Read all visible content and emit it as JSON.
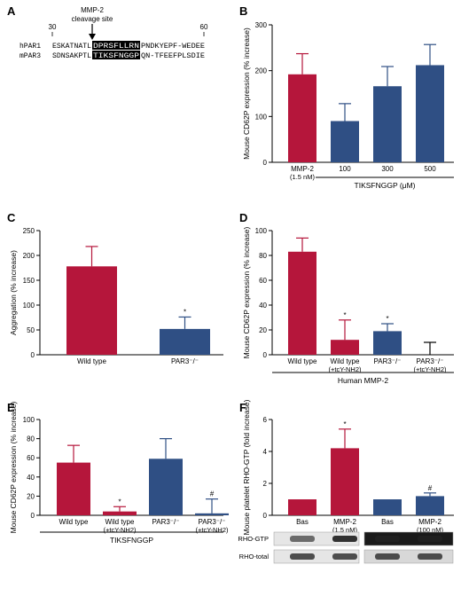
{
  "colors": {
    "red": "#b5163b",
    "blue": "#2f4f84",
    "black": "#000000"
  },
  "panels": {
    "A": {
      "letter": "A",
      "site_label_line1": "MMP-2",
      "site_label_line2": "cleavage site",
      "pos_start": "30",
      "pos_end": "60",
      "rows": [
        {
          "name": "hPAR1",
          "pre": "ESKATNATL",
          "hl": "DPRSFLLRN",
          "post": "PNDKYEPF-WEDEE"
        },
        {
          "name": "mPAR3",
          "pre": "SDNSAKPTL",
          "hl": "TIKSFNGGP",
          "post": "QN-TFEEFPLSDIE"
        }
      ]
    },
    "B": {
      "letter": "B",
      "ylabel": "Mouse CD62P expression (% increase)",
      "ylim": [
        0,
        300
      ],
      "yticks": [
        "0",
        "100",
        "200",
        "300"
      ],
      "bars": [
        {
          "label1": "MMP-2",
          "label2": "(1.5 nM)",
          "value": 192,
          "err": 45,
          "color": "red",
          "sig": ""
        },
        {
          "label1": "100",
          "label2": "",
          "value": 90,
          "err": 38,
          "color": "blue",
          "sig": ""
        },
        {
          "label1": "300",
          "label2": "",
          "value": 166,
          "err": 43,
          "color": "blue",
          "sig": ""
        },
        {
          "label1": "500",
          "label2": "",
          "value": 212,
          "err": 45,
          "color": "blue",
          "sig": ""
        }
      ],
      "group_label": "TIKSFNGGP (μM)"
    },
    "C": {
      "letter": "C",
      "ylabel": "Aggregation (% increase)",
      "ylim": [
        0,
        250
      ],
      "yticks": [
        "0",
        "50",
        "100",
        "150",
        "200",
        "250"
      ],
      "bars": [
        {
          "label1": "Wild type",
          "label2": "",
          "value": 178,
          "err": 40,
          "color": "red",
          "sig": ""
        },
        {
          "label1": "PAR3⁻/⁻",
          "label2": "",
          "value": 52,
          "err": 24,
          "color": "blue",
          "sig": "*"
        }
      ]
    },
    "D": {
      "letter": "D",
      "ylabel": "Mouse CD62P expression (% increase)",
      "ylim": [
        0,
        100
      ],
      "yticks": [
        "0",
        "20",
        "40",
        "60",
        "80",
        "100"
      ],
      "bars": [
        {
          "label1": "Wild type",
          "label2": "",
          "value": 83,
          "err": 11,
          "color": "red",
          "sig": ""
        },
        {
          "label1": "Wild type",
          "label2": "(+tcY-NH2)",
          "value": 12,
          "err": 16,
          "color": "red",
          "sig": "*"
        },
        {
          "label1": "PAR3⁻/⁻",
          "label2": "",
          "value": 19,
          "err": 6,
          "color": "blue",
          "sig": "*"
        },
        {
          "label1": "PAR3⁻/⁻",
          "label2": "(+tcY-NH2)",
          "value": 0,
          "err": 10,
          "color": "blue",
          "sig": ""
        }
      ],
      "group_label": "Human MMP-2"
    },
    "E": {
      "letter": "E",
      "ylabel": "Mouse CD62P expression (% increase)",
      "ylim": [
        0,
        100
      ],
      "yticks": [
        "0",
        "20",
        "40",
        "60",
        "80",
        "100"
      ],
      "bars": [
        {
          "label1": "Wild type",
          "label2": "",
          "value": 55,
          "err": 18,
          "color": "red",
          "sig": ""
        },
        {
          "label1": "Wild type",
          "label2": "(+tcY-NH2)",
          "value": 4,
          "err": 5,
          "color": "red",
          "sig": "*"
        },
        {
          "label1": "PAR3⁻/⁻",
          "label2": "",
          "value": 59,
          "err": 21,
          "color": "blue",
          "sig": ""
        },
        {
          "label1": "PAR3⁻/⁻",
          "label2": "(+tcY-NH2)",
          "value": 2,
          "err": 15,
          "color": "blue",
          "sig": "#"
        }
      ],
      "group_label": "TIKSFNGGP"
    },
    "F": {
      "letter": "F",
      "ylabel": "Mouse platelet RHO-GTP (fold increase)",
      "ylim": [
        0,
        6
      ],
      "yticks": [
        "0",
        "2",
        "4",
        "6"
      ],
      "bars": [
        {
          "label1": "Bas",
          "label2": "",
          "value": 1.0,
          "err": 0,
          "color": "red",
          "sig": ""
        },
        {
          "label1": "MMP-2",
          "label2": "(1.5 nM)",
          "value": 4.2,
          "err": 1.2,
          "color": "red",
          "sig": "*"
        },
        {
          "label1": "Bas",
          "label2": "",
          "value": 1.0,
          "err": 0,
          "color": "blue",
          "sig": ""
        },
        {
          "label1": "MMP-2",
          "label2": "(100 nM)",
          "value": 1.2,
          "err": 0.2,
          "color": "blue",
          "sig": "#"
        }
      ],
      "blot_labels": [
        "RHO-GTP",
        "RHO-total"
      ]
    }
  },
  "chart_data": [
    {
      "type": "bar",
      "panel": "B",
      "categories": [
        "MMP-2 (1.5 nM)",
        "100",
        "300",
        "500"
      ],
      "values": [
        192,
        90,
        166,
        212
      ],
      "errors": [
        45,
        38,
        43,
        45
      ],
      "ylabel": "Mouse CD62P expression (% increase)",
      "xlabel": "TIKSFNGGP (μM)",
      "ylim": [
        0,
        300
      ]
    },
    {
      "type": "bar",
      "panel": "C",
      "categories": [
        "Wild type",
        "PAR3⁻/⁻"
      ],
      "values": [
        178,
        52
      ],
      "errors": [
        40,
        24
      ],
      "ylabel": "Aggregation (% increase)",
      "ylim": [
        0,
        250
      ]
    },
    {
      "type": "bar",
      "panel": "D",
      "categories": [
        "Wild type",
        "Wild type (+tcY-NH2)",
        "PAR3⁻/⁻",
        "PAR3⁻/⁻ (+tcY-NH2)"
      ],
      "values": [
        83,
        12,
        19,
        0
      ],
      "errors": [
        11,
        16,
        6,
        10
      ],
      "ylabel": "Mouse CD62P expression (% increase)",
      "xlabel": "Human MMP-2",
      "ylim": [
        0,
        100
      ]
    },
    {
      "type": "bar",
      "panel": "E",
      "categories": [
        "Wild type",
        "Wild type (+tcY-NH2)",
        "PAR3⁻/⁻",
        "PAR3⁻/⁻ (+tcY-NH2)"
      ],
      "values": [
        55,
        4,
        59,
        2
      ],
      "errors": [
        18,
        5,
        21,
        15
      ],
      "ylabel": "Mouse CD62P expression (% increase)",
      "xlabel": "TIKSFNGGP",
      "ylim": [
        0,
        100
      ]
    },
    {
      "type": "bar",
      "panel": "F",
      "categories": [
        "Bas",
        "MMP-2 (1.5 nM)",
        "Bas",
        "MMP-2 (100 nM)"
      ],
      "values": [
        1.0,
        4.2,
        1.0,
        1.2
      ],
      "errors": [
        0,
        1.2,
        0,
        0.2
      ],
      "ylabel": "Mouse platelet RHO-GTP (fold increase)",
      "ylim": [
        0,
        6
      ]
    }
  ]
}
